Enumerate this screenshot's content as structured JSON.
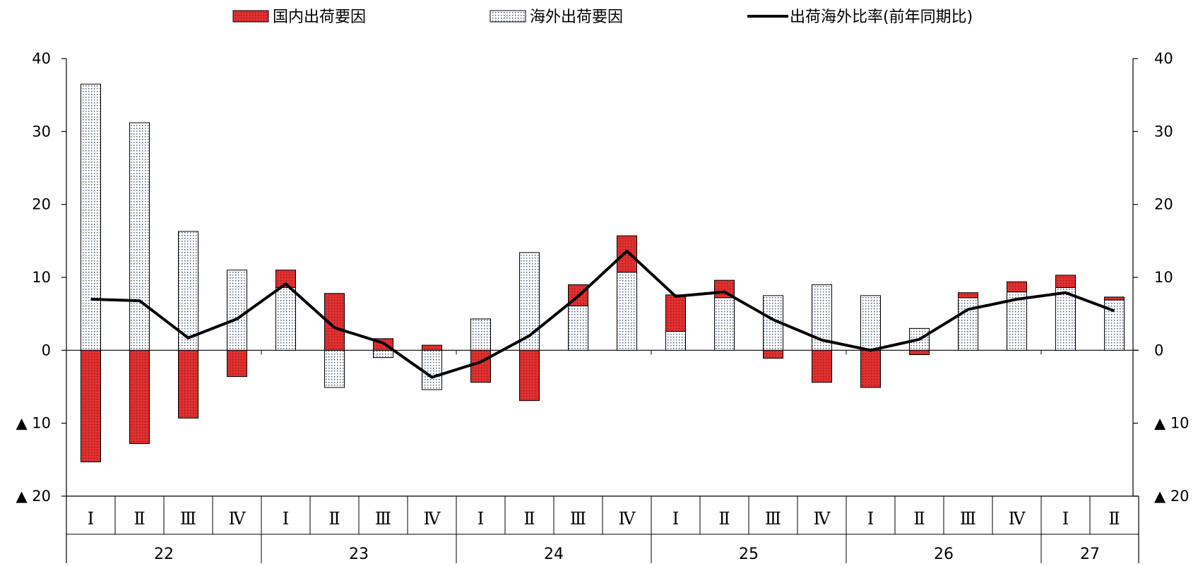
{
  "legend": {
    "domestic": "国内出荷要因",
    "overseas": "海外出荷要因",
    "ratio": "出荷海外比率(前年同期比)"
  },
  "colors": {
    "domestic": "#e03030",
    "overseas": "#ffffff",
    "line": "#000000"
  },
  "chart_data": {
    "type": "bar",
    "categories": [
      "I",
      "II",
      "III",
      "IV",
      "I",
      "II",
      "III",
      "IV",
      "I",
      "II",
      "III",
      "IV",
      "I",
      "II",
      "III",
      "IV",
      "I",
      "II",
      "III",
      "IV",
      "I",
      "II"
    ],
    "quarter_labels": [
      "Ⅰ",
      "Ⅱ",
      "Ⅲ",
      "Ⅳ",
      "Ⅰ",
      "Ⅱ",
      "Ⅲ",
      "Ⅳ",
      "Ⅰ",
      "Ⅱ",
      "Ⅲ",
      "Ⅳ",
      "Ⅰ",
      "Ⅱ",
      "Ⅲ",
      "Ⅳ",
      "Ⅰ",
      "Ⅱ",
      "Ⅲ",
      "Ⅳ",
      "Ⅰ",
      "Ⅱ"
    ],
    "years": [
      {
        "label": "22",
        "quarters": 4
      },
      {
        "label": "23",
        "quarters": 4
      },
      {
        "label": "24",
        "quarters": 4
      },
      {
        "label": "25",
        "quarters": 4
      },
      {
        "label": "26",
        "quarters": 4
      },
      {
        "label": "27",
        "quarters": 2
      }
    ],
    "series": [
      {
        "name": "国内出荷要因",
        "values": [
          -15.3,
          -12.8,
          -9.3,
          -3.6,
          2.4,
          7.8,
          1.6,
          0.7,
          -4.4,
          -6.9,
          2.9,
          5.0,
          5.0,
          2.4,
          -1.1,
          -4.4,
          -5.1,
          -0.6,
          0.7,
          1.4,
          1.7,
          0.4
        ]
      },
      {
        "name": "海外出荷要因",
        "values": [
          36.5,
          31.2,
          16.3,
          11.0,
          8.6,
          -5.1,
          -1.0,
          -5.4,
          4.3,
          13.4,
          6.1,
          10.7,
          2.6,
          7.2,
          7.5,
          9.0,
          7.5,
          3.0,
          7.2,
          8.0,
          8.6,
          6.9
        ]
      },
      {
        "name": "出荷海外比率(前年同期比)",
        "values": [
          7.0,
          6.8,
          1.7,
          4.3,
          9.1,
          3.1,
          1.0,
          -3.7,
          -1.6,
          2.0,
          7.4,
          13.6,
          7.4,
          8.0,
          4.2,
          1.4,
          0.0,
          1.5,
          5.6,
          7.0,
          7.9,
          5.4
        ]
      }
    ],
    "ylim": [
      -20,
      40
    ],
    "yticks": [
      40,
      30,
      20,
      10,
      0,
      -10,
      -20
    ],
    "ytick_labels": [
      "40",
      "30",
      "20",
      "10",
      "0",
      "▲ 10",
      "▲ 20"
    ],
    "grid": false,
    "legend_position": "top"
  }
}
